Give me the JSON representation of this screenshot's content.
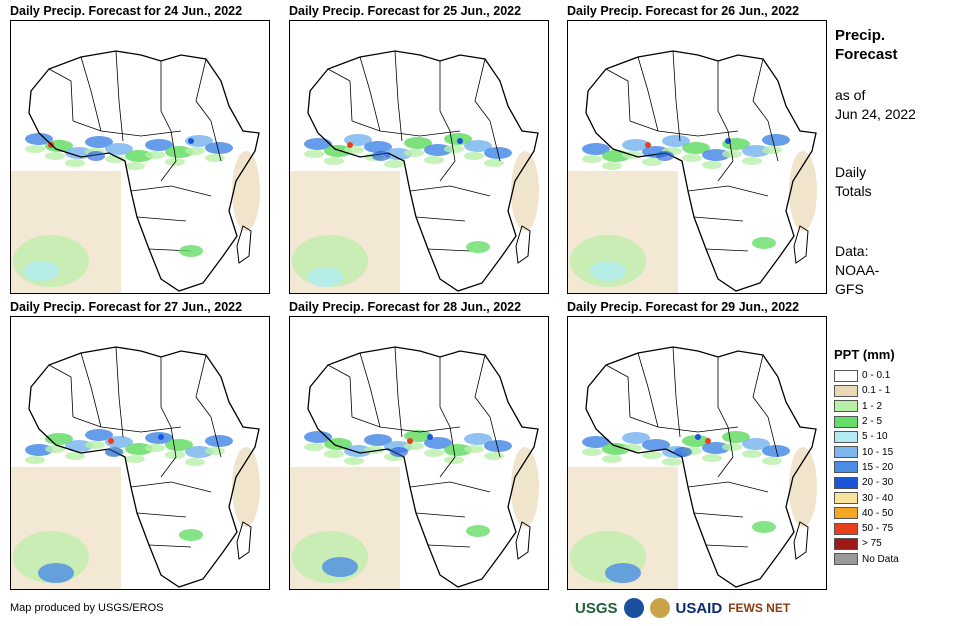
{
  "panels": [
    {
      "title": "Daily Precip. Forecast for 24 Jun., 2022"
    },
    {
      "title": "Daily Precip. Forecast for 25 Jun., 2022"
    },
    {
      "title": "Daily Precip. Forecast for 26 Jun., 2022"
    },
    {
      "title": "Daily Precip. Forecast for 27 Jun., 2022"
    },
    {
      "title": "Daily Precip. Forecast for 28 Jun., 2022"
    },
    {
      "title": "Daily Precip. Forecast for 29 Jun., 2022"
    }
  ],
  "sidebar": {
    "title_line1": "Precip.",
    "title_line2": "Forecast",
    "asof_line1": "as of",
    "asof_line2": "Jun 24, 2022",
    "totals_line1": "Daily",
    "totals_line2": "Totals",
    "data_line1": "Data:",
    "data_line2": "NOAA-",
    "data_line3": "GFS"
  },
  "legend": {
    "title": "PPT (mm)",
    "items": [
      {
        "label": "0 - 0.1",
        "color": "#ffffff"
      },
      {
        "label": "0.1 - 1",
        "color": "#ead9b6"
      },
      {
        "label": "1 - 2",
        "color": "#b8f0a8"
      },
      {
        "label": "2 - 5",
        "color": "#66dd66"
      },
      {
        "label": "5 - 10",
        "color": "#b2ecf2"
      },
      {
        "label": "10 - 15",
        "color": "#7cb7ee"
      },
      {
        "label": "15 - 20",
        "color": "#4a8ce6"
      },
      {
        "label": "20 - 30",
        "color": "#1a56d8"
      },
      {
        "label": "30 - 40",
        "color": "#f8e39a"
      },
      {
        "label": "40 - 50",
        "color": "#f5a623"
      },
      {
        "label": "50 - 75",
        "color": "#e8401c"
      },
      {
        "label": "> 75",
        "color": "#a01818"
      },
      {
        "label": "No Data",
        "color": "#9a9a9a"
      }
    ]
  },
  "footer": {
    "credit": "Map produced by USGS/EROS",
    "logos": [
      "USGS",
      "USAID",
      "FEWS NET"
    ]
  }
}
